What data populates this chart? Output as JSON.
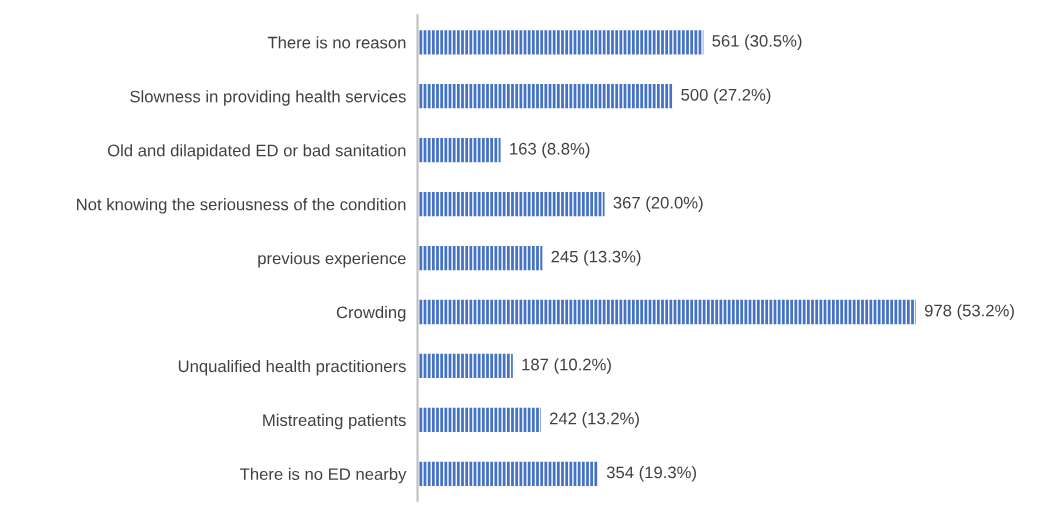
{
  "chart_data": {
    "type": "bar",
    "orientation": "horizontal",
    "categories": [
      "There is no reason",
      "Slowness in providing health services",
      "Old and dilapidated ED or bad sanitation",
      "Not knowing the seriousness of the condition",
      "previous experience",
      "Crowding",
      "Unqualified health practitioners",
      "Mistreating patients",
      "There is no ED nearby"
    ],
    "values": [
      561,
      500,
      163,
      367,
      245,
      978,
      187,
      242,
      354
    ],
    "value_labels": [
      "561 (30.5%)",
      "500 (27.2%)",
      "163 (8.8%)",
      "367 (20.0%)",
      "245 (13.3%)",
      "978 (53.2%)",
      "187 (10.2%)",
      "242 (13.2%)",
      "354 (19.3%)"
    ],
    "color": "#4472c4",
    "tick_labels": "y",
    "grid": false,
    "legend": false
  }
}
